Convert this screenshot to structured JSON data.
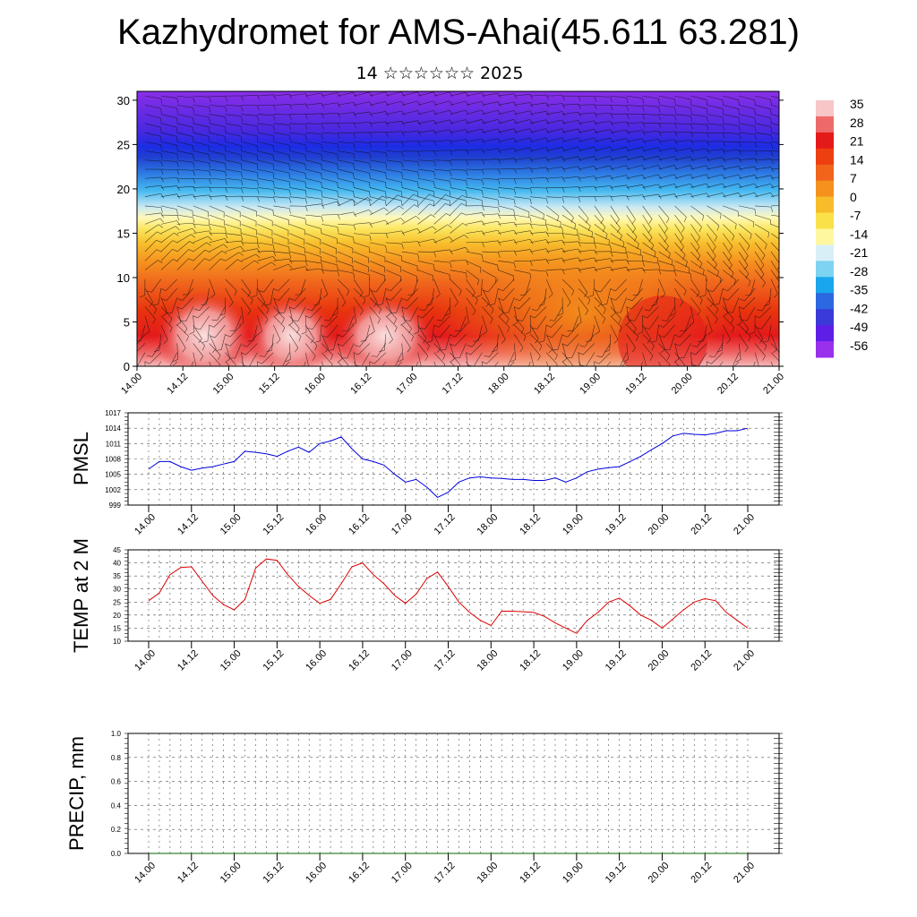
{
  "title": "Kazhydromet for AMS-Ahai(45.611 63.281)",
  "subtitle": "14 ☆☆☆☆☆☆ 2025",
  "colors": {
    "pmsl_line": "#0000dd",
    "temp_line": "#dd0000",
    "precip_line": "#006600"
  },
  "chart_data": [
    {
      "type": "heatmap",
      "name": "upper-air-temperature-wind",
      "x_ticks": [
        "14.00",
        "14.12",
        "15.00",
        "15.12",
        "16.00",
        "16.12",
        "17.00",
        "17.12",
        "18.00",
        "18.12",
        "19.00",
        "19.12",
        "20.00",
        "20.12",
        "21.00"
      ],
      "y_ticks": [
        "0",
        "5",
        "10",
        "15",
        "20",
        "25",
        "30"
      ],
      "ylim": [
        0,
        31
      ],
      "colorbar_labels": [
        "35",
        "28",
        "21",
        "14",
        "7",
        "0",
        "-7",
        "-14",
        "-21",
        "-28",
        "-35",
        "-42",
        "-49",
        "-56"
      ],
      "colorbar_colors": [
        "#f7c6c6",
        "#ee6a6a",
        "#e41a1a",
        "#ee3f10",
        "#f0641c",
        "#f5921e",
        "#f7bc2a",
        "#fae14a",
        "#fff7a0",
        "#d9eff8",
        "#7fd3f2",
        "#1aa6ec",
        "#2c68e0",
        "#3a3ad8",
        "#5e1ee6",
        "#9930ec"
      ],
      "wind_barbs": true
    },
    {
      "type": "line",
      "ylabel": "PMSL",
      "x_ticks": [
        "14.00",
        "14.12",
        "15.00",
        "15.12",
        "16.00",
        "16.12",
        "17.00",
        "17.12",
        "18.00",
        "18.12",
        "19.00",
        "19.12",
        "20.00",
        "20.12",
        "21.00"
      ],
      "y_ticks": [
        "999",
        "1002",
        "1005",
        "1008",
        "1011",
        "1014",
        "1017"
      ],
      "ylim": [
        999,
        1017
      ],
      "grid": true,
      "x_index": [
        0,
        1,
        2,
        3,
        4,
        5,
        6,
        7,
        8,
        9,
        10,
        11,
        12,
        13,
        14,
        15,
        16,
        17,
        18,
        19,
        20,
        21,
        22,
        23,
        24,
        25,
        26,
        27,
        28,
        29,
        30,
        31,
        32,
        33,
        34,
        35,
        36,
        37,
        38,
        39,
        40,
        41,
        42,
        43,
        44,
        45,
        46,
        47,
        48,
        49,
        50,
        51,
        52,
        53,
        54,
        55,
        56
      ],
      "values": [
        1006,
        1007.5,
        1007.5,
        1006.5,
        1005.8,
        1006.2,
        1006.5,
        1007,
        1007.5,
        1009.5,
        1009.3,
        1009,
        1008.5,
        1009.5,
        1010.3,
        1009.3,
        1011,
        1011.5,
        1012.3,
        1010,
        1008,
        1007.5,
        1006.8,
        1005,
        1003.5,
        1004,
        1002.5,
        1000.5,
        1001.5,
        1003.5,
        1004.3,
        1004.5,
        1004.3,
        1004.2,
        1004,
        1004,
        1003.8,
        1003.8,
        1004.3,
        1003.5,
        1004.3,
        1005.5,
        1006,
        1006.3,
        1006.5,
        1007.5,
        1008.5,
        1009.8,
        1011,
        1012.5,
        1013,
        1012.8,
        1012.7,
        1013,
        1013.5,
        1013.5,
        1014
      ]
    },
    {
      "type": "line",
      "ylabel": "TEMP at 2 M",
      "x_ticks": [
        "14.00",
        "14.12",
        "15.00",
        "15.12",
        "16.00",
        "16.12",
        "17.00",
        "17.12",
        "18.00",
        "18.12",
        "19.00",
        "19.12",
        "20.00",
        "20.12",
        "21.00"
      ],
      "y_ticks": [
        "10",
        "15",
        "20",
        "25",
        "30",
        "35",
        "40",
        "45"
      ],
      "ylim": [
        10,
        45
      ],
      "grid": true,
      "values": [
        25.5,
        28.5,
        35.5,
        38.2,
        38.5,
        33,
        27.5,
        24,
        22,
        26,
        38,
        41.5,
        41,
        35.5,
        31,
        27.5,
        24.5,
        26,
        32,
        38.5,
        40,
        35.5,
        32,
        27.5,
        24.5,
        28,
        34,
        36.5,
        31,
        25,
        21,
        18,
        16,
        21.5,
        21.5,
        21.3,
        21,
        19.5,
        17,
        15,
        13,
        18,
        21,
        25,
        26.5,
        23.5,
        20,
        18,
        15,
        18.5,
        22,
        25,
        26.3,
        25.5,
        21,
        18,
        15
      ]
    },
    {
      "type": "line",
      "ylabel": "PRECIP, mm",
      "x_ticks": [
        "14.00",
        "14.12",
        "15.00",
        "15.12",
        "16.00",
        "16.12",
        "17.00",
        "17.12",
        "18.00",
        "18.12",
        "19.00",
        "19.12",
        "20.00",
        "20.12",
        "21.00"
      ],
      "y_ticks": [
        "0.0",
        "0.2",
        "0.4",
        "0.6",
        "0.8",
        "1.0"
      ],
      "ylim": [
        0,
        1
      ],
      "grid": true,
      "values": [
        0,
        0,
        0,
        0,
        0,
        0,
        0,
        0,
        0,
        0,
        0,
        0,
        0,
        0,
        0,
        0,
        0,
        0,
        0,
        0,
        0,
        0,
        0,
        0,
        0,
        0,
        0,
        0,
        0,
        0,
        0,
        0,
        0,
        0,
        0,
        0,
        0,
        0,
        0,
        0,
        0,
        0,
        0,
        0,
        0,
        0,
        0,
        0,
        0,
        0,
        0,
        0,
        0,
        0,
        0,
        0,
        0
      ]
    }
  ]
}
